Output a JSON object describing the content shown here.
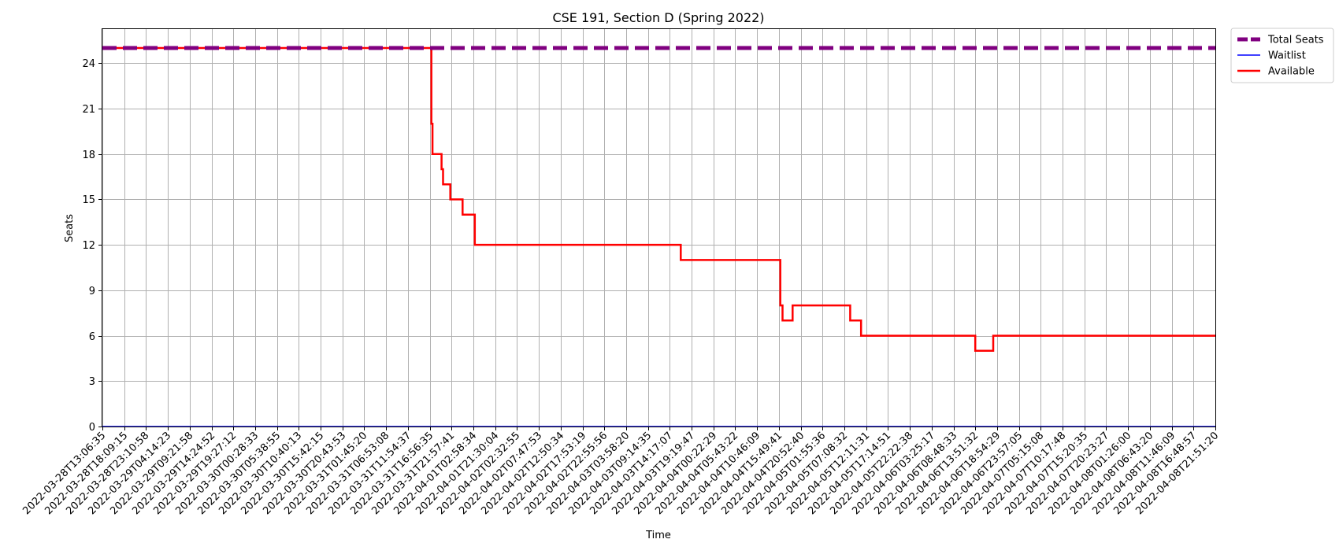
{
  "chart_data": {
    "type": "line",
    "title": "CSE 191, Section D (Spring 2022)",
    "xlabel": "Time",
    "ylabel": "Seats",
    "ylim": [
      0,
      26.25
    ],
    "yticks": [
      0,
      3,
      6,
      9,
      12,
      15,
      18,
      21,
      24
    ],
    "grid": true,
    "legend_position": "outside-top-right",
    "x_tick_labels": [
      "2022-03-28T13:06:35",
      "2022-03-28T18:09:15",
      "2022-03-28T23:10:58",
      "2022-03-29T04:14:23",
      "2022-03-29T09:21:58",
      "2022-03-29T14:24:52",
      "2022-03-29T19:27:12",
      "2022-03-30T00:28:33",
      "2022-03-30T05:38:55",
      "2022-03-30T10:40:13",
      "2022-03-30T15:42:15",
      "2022-03-30T20:43:53",
      "2022-03-31T01:45:20",
      "2022-03-31T06:53:08",
      "2022-03-31T11:54:37",
      "2022-03-31T16:56:35",
      "2022-03-31T21:57:41",
      "2022-04-01T02:58:34",
      "2022-04-01T21:30:04",
      "2022-04-02T02:32:55",
      "2022-04-02T07:47:53",
      "2022-04-02T12:50:34",
      "2022-04-02T17:53:19",
      "2022-04-02T22:55:56",
      "2022-04-03T03:58:20",
      "2022-04-03T09:14:35",
      "2022-04-03T14:17:07",
      "2022-04-03T19:19:47",
      "2022-04-04T00:22:29",
      "2022-04-04T05:43:22",
      "2022-04-04T10:46:09",
      "2022-04-04T15:49:41",
      "2022-04-04T20:52:40",
      "2022-04-05T01:55:36",
      "2022-04-05T07:08:32",
      "2022-04-05T12:11:31",
      "2022-04-05T17:14:51",
      "2022-04-05T22:22:38",
      "2022-04-06T03:25:17",
      "2022-04-06T08:48:33",
      "2022-04-06T13:51:32",
      "2022-04-06T18:54:29",
      "2022-04-06T23:57:05",
      "2022-04-07T05:15:08",
      "2022-04-07T10:17:48",
      "2022-04-07T15:20:35",
      "2022-04-07T20:23:27",
      "2022-04-08T01:26:00",
      "2022-04-08T06:43:20",
      "2022-04-08T11:46:09",
      "2022-04-08T16:48:57",
      "2022-04-08T21:51:20"
    ],
    "series": [
      {
        "name": "Total Seats",
        "color": "#800080",
        "style": "dashed",
        "points": [
          [
            "2022-03-28T13:06:35",
            25
          ],
          [
            "2022-04-08T21:51:20",
            25
          ]
        ]
      },
      {
        "name": "Waitlist",
        "color": "#0000ff",
        "style": "solid",
        "points": [
          [
            "2022-03-28T13:06:35",
            0
          ],
          [
            "2022-04-08T21:51:20",
            0
          ]
        ]
      },
      {
        "name": "Available",
        "color": "#ff0000",
        "style": "step",
        "points": [
          [
            "2022-03-28T13:06:35",
            25
          ],
          [
            "2022-03-31T16:56:35",
            25
          ],
          [
            "2022-03-31T17:20:00",
            20
          ],
          [
            "2022-03-31T17:35:00",
            18
          ],
          [
            "2022-03-31T19:40:00",
            17
          ],
          [
            "2022-03-31T20:00:00",
            16
          ],
          [
            "2022-03-31T21:40:00",
            15
          ],
          [
            "2022-04-01T00:30:00",
            14
          ],
          [
            "2022-04-01T04:10:00",
            12
          ],
          [
            "2022-04-03T16:50:00",
            11
          ],
          [
            "2022-04-04T16:10:00",
            8
          ],
          [
            "2022-04-04T16:40:00",
            7
          ],
          [
            "2022-04-04T19:00:00",
            8
          ],
          [
            "2022-04-05T08:30:00",
            7
          ],
          [
            "2022-04-05T11:00:00",
            6
          ],
          [
            "2022-04-06T13:51:32",
            5
          ],
          [
            "2022-04-06T18:00:00",
            6
          ],
          [
            "2022-04-08T21:51:20",
            6
          ]
        ]
      }
    ]
  }
}
